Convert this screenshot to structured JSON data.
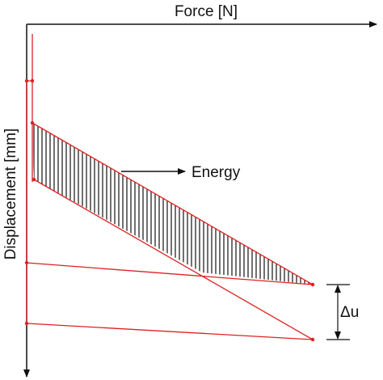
{
  "axes": {
    "x_label": "Force [N]",
    "y_label": "Displacement [mm]"
  },
  "annotations": {
    "energy": "Energy",
    "delta": "Δu"
  }
}
